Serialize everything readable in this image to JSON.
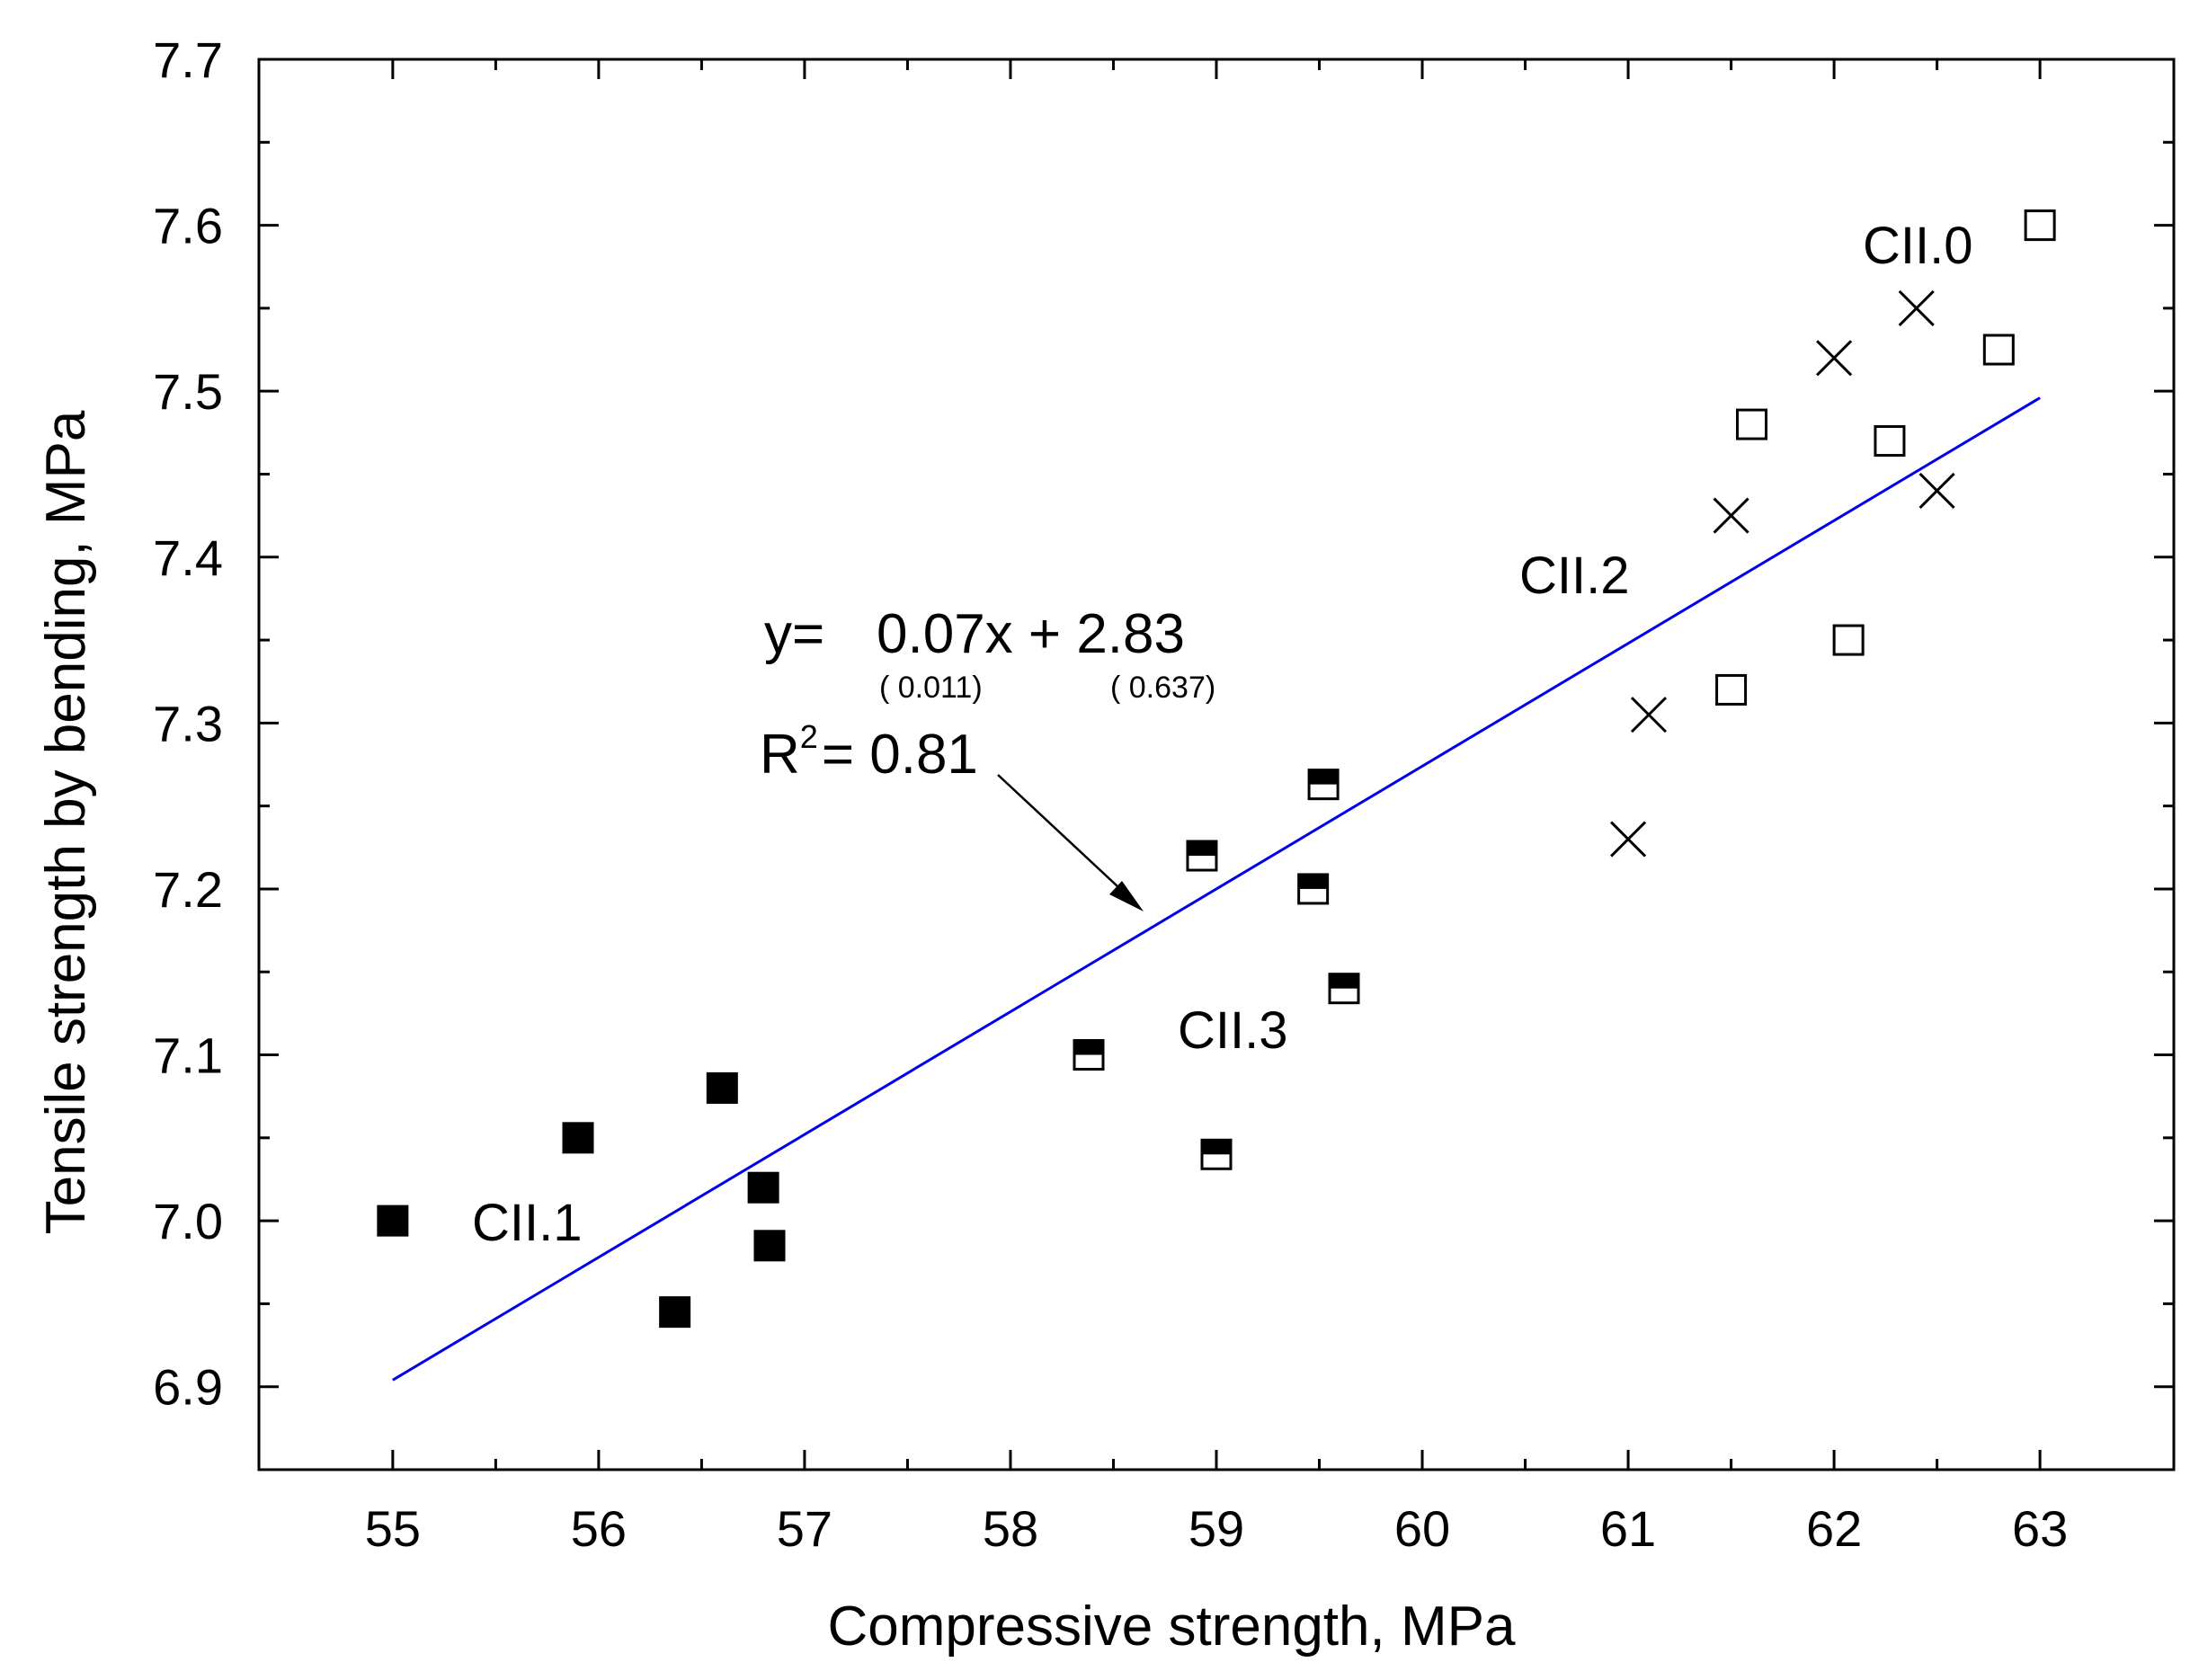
{
  "chart_data": {
    "type": "scatter",
    "xlabel": "Compressive strength, MPa",
    "ylabel": "Tensile strength by bending, MPa",
    "xlim": [
      54.35,
      63.65
    ],
    "ylim": [
      6.85,
      7.7
    ],
    "xticks": [
      55,
      56,
      57,
      58,
      59,
      60,
      61,
      62,
      63
    ],
    "xtick_labels": [
      "55",
      "56",
      "57",
      "58",
      "59",
      "60",
      "61",
      "62",
      "63"
    ],
    "yticks": [
      6.9,
      7.0,
      7.1,
      7.2,
      7.3,
      7.4,
      7.5,
      7.6,
      7.7
    ],
    "ytick_labels": [
      "6.9",
      "7.0",
      "7.1",
      "7.2",
      "7.3",
      "7.4",
      "7.5",
      "7.6",
      "7.7"
    ],
    "series": [
      {
        "name": "CII.0",
        "marker": "open-square",
        "points": [
          [
            63.0,
            7.6
          ],
          [
            62.8,
            7.525
          ],
          [
            62.27,
            7.47
          ],
          [
            61.6,
            7.48
          ],
          [
            62.07,
            7.35
          ],
          [
            61.5,
            7.32
          ]
        ]
      },
      {
        "name": "CII.2",
        "marker": "cross",
        "points": [
          [
            62.4,
            7.55
          ],
          [
            62.0,
            7.52
          ],
          [
            61.5,
            7.425
          ],
          [
            62.5,
            7.44
          ],
          [
            61.1,
            7.305
          ],
          [
            61.0,
            7.23
          ]
        ]
      },
      {
        "name": "CII.3",
        "marker": "half-filled-square",
        "points": [
          [
            59.52,
            7.263
          ],
          [
            58.93,
            7.22
          ],
          [
            59.47,
            7.2
          ],
          [
            59.62,
            7.14
          ],
          [
            58.38,
            7.1
          ],
          [
            59.0,
            7.04
          ]
        ]
      },
      {
        "name": "CII.1",
        "marker": "filled-square",
        "points": [
          [
            55.0,
            7.0
          ],
          [
            55.9,
            7.05
          ],
          [
            56.6,
            7.08
          ],
          [
            56.8,
            7.02
          ],
          [
            56.83,
            6.985
          ],
          [
            56.37,
            6.945
          ]
        ]
      }
    ],
    "fit_line": {
      "x": [
        55.0,
        63.0
      ],
      "y": [
        6.904,
        7.496
      ],
      "color": "#0000ee"
    },
    "annotations": {
      "equation_prefix": "y=",
      "equation_body": "0.07x + 2.83",
      "slope_se": "( 0.011)",
      "intercept_se": "( 0.637)",
      "r2_prefix": "R",
      "r2_superscript": "2",
      "r2_value": "= 0.81"
    },
    "group_labels": {
      "cii0": "CII.0",
      "cii2": "CII.2",
      "cii3": "CII.3",
      "cii1": "CII.1"
    }
  }
}
